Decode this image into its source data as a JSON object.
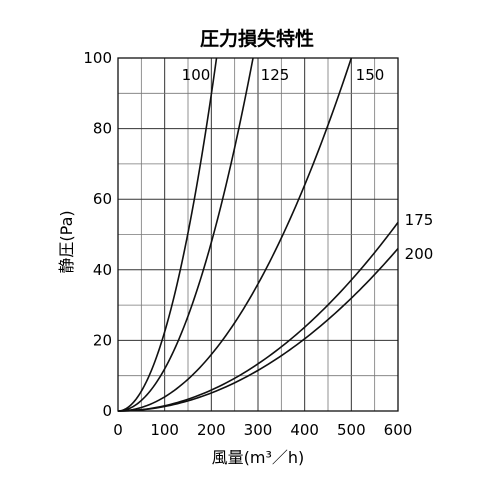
{
  "chart_data": {
    "type": "line",
    "title": "圧力損失特性",
    "xlabel": "風量(m³／h)",
    "ylabel": "静圧(Pa)",
    "xlim": [
      0,
      600
    ],
    "ylim": [
      0,
      100
    ],
    "x_ticks": [
      "0",
      "100",
      "200",
      "300",
      "400",
      "500",
      "600"
    ],
    "y_ticks": [
      "0",
      "20",
      "40",
      "60",
      "80",
      "100"
    ],
    "grid": true,
    "series": [
      {
        "name": "100",
        "x": [
          0,
          50,
          100,
          150,
          200,
          210
        ],
        "y": [
          0,
          5.5,
          22,
          50,
          90,
          99
        ]
      },
      {
        "name": "125",
        "x": [
          0,
          50,
          100,
          150,
          200,
          250,
          290
        ],
        "y": [
          0,
          3,
          12,
          27,
          48,
          75,
          100
        ]
      },
      {
        "name": "150",
        "x": [
          0,
          100,
          200,
          300,
          400,
          500
        ],
        "y": [
          0,
          4,
          16,
          36,
          64,
          100
        ]
      },
      {
        "name": "175",
        "x": [
          0,
          100,
          200,
          300,
          400,
          500,
          600
        ],
        "y": [
          0,
          1.5,
          6,
          13.5,
          24,
          37.5,
          53
        ]
      },
      {
        "name": "200",
        "x": [
          0,
          100,
          200,
          300,
          400,
          500,
          600
        ],
        "y": [
          0,
          1.3,
          5,
          11.5,
          20.5,
          32,
          46
        ]
      }
    ]
  }
}
